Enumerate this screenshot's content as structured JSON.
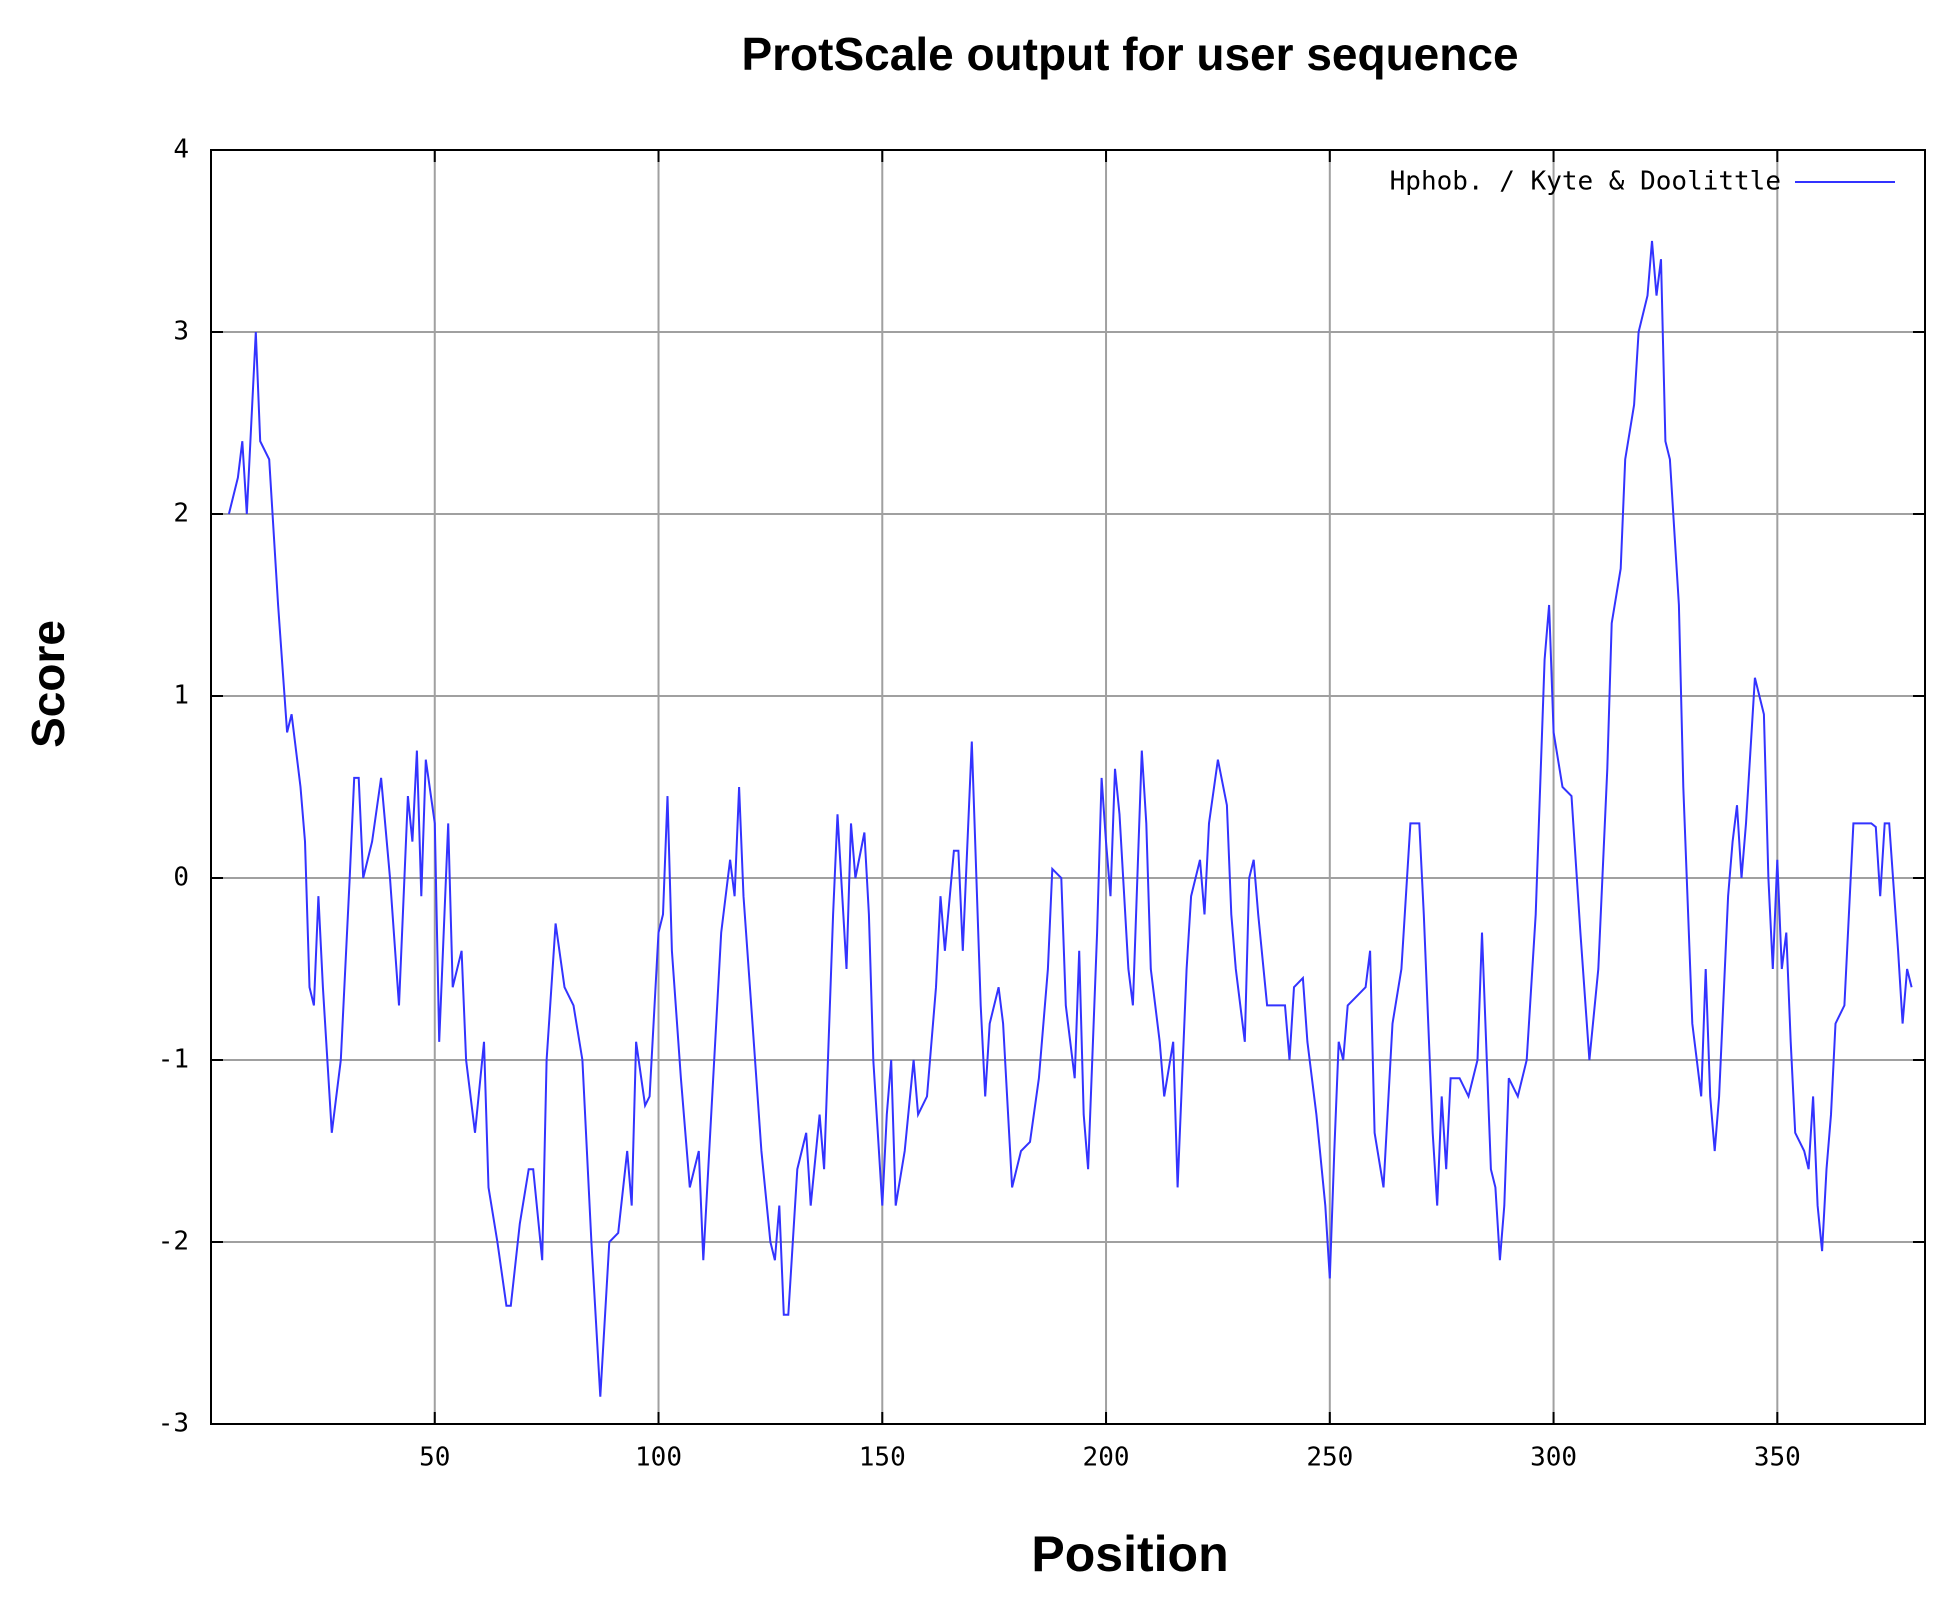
{
  "chart_data": {
    "type": "line",
    "title": "ProtScale output for user sequence",
    "x_label": "Position",
    "y_label": "Score",
    "xlim": [
      0,
      383
    ],
    "ylim": [
      -3,
      4
    ],
    "xticks": [
      50,
      100,
      150,
      200,
      250,
      300,
      350
    ],
    "yticks": [
      -3,
      -2,
      -1,
      0,
      1,
      2,
      3,
      4
    ],
    "grid": true,
    "legend_position": "top right",
    "x": [
      4,
      6,
      7,
      8,
      9,
      10,
      11,
      13,
      15,
      17,
      18,
      20,
      21,
      22,
      23,
      24,
      25,
      27,
      29,
      31,
      32,
      33,
      34,
      36,
      38,
      40,
      42,
      44,
      45,
      46,
      47,
      48,
      50,
      51,
      53,
      54,
      56,
      57,
      59,
      61,
      62,
      64,
      66,
      67,
      69,
      71,
      72,
      74,
      75,
      77,
      79,
      81,
      83,
      85,
      87,
      89,
      91,
      93,
      94,
      95,
      97,
      98,
      100,
      101,
      102,
      103,
      105,
      107,
      109,
      110,
      112,
      114,
      116,
      117,
      118,
      119,
      121,
      123,
      125,
      126,
      127,
      128,
      129,
      131,
      133,
      134,
      136,
      137,
      139,
      140,
      142,
      143,
      144,
      146,
      147,
      148,
      150,
      151,
      152,
      153,
      155,
      157,
      158,
      160,
      162,
      163,
      164,
      166,
      167,
      168,
      170,
      172,
      173,
      174,
      176,
      177,
      179,
      181,
      183,
      185,
      187,
      188,
      190,
      191,
      193,
      194,
      195,
      196,
      198,
      199,
      200,
      201,
      202,
      203,
      205,
      206,
      208,
      209,
      210,
      212,
      213,
      215,
      216,
      218,
      219,
      221,
      222,
      223,
      225,
      227,
      228,
      229,
      231,
      232,
      233,
      234,
      236,
      238,
      240,
      241,
      242,
      244,
      245,
      247,
      249,
      250,
      251,
      252,
      253,
      254,
      256,
      258,
      259,
      260,
      262,
      264,
      266,
      268,
      270,
      271,
      273,
      274,
      275,
      276,
      277,
      279,
      281,
      283,
      284,
      286,
      287,
      288,
      289,
      290,
      292,
      294,
      296,
      298,
      299,
      300,
      302,
      304,
      306,
      308,
      310,
      312,
      313,
      315,
      316,
      318,
      319,
      321,
      322,
      323,
      324,
      325,
      326,
      328,
      329,
      331,
      332,
      333,
      334,
      335,
      336,
      337,
      339,
      340,
      341,
      342,
      343,
      345,
      346,
      347,
      348,
      349,
      350,
      351,
      352,
      353,
      354,
      356,
      357,
      358,
      359,
      360,
      361,
      362,
      363,
      365,
      367,
      369,
      371,
      372,
      373,
      374,
      375,
      377,
      378,
      379,
      380
    ],
    "series": [
      {
        "name": "Hphob. / Kyte & Doolittle",
        "color": "#3333ff",
        "values": [
          2.0,
          2.2,
          2.4,
          2.0,
          2.5,
          3.0,
          2.4,
          2.3,
          1.5,
          0.8,
          0.9,
          0.5,
          0.2,
          -0.6,
          -0.7,
          -0.1,
          -0.6,
          -1.4,
          -1.0,
          0.0,
          0.55,
          0.55,
          0.0,
          0.2,
          0.55,
          0.0,
          -0.7,
          0.45,
          0.2,
          0.7,
          -0.1,
          0.65,
          0.3,
          -0.9,
          0.3,
          -0.6,
          -0.4,
          -1.0,
          -1.4,
          -0.9,
          -1.7,
          -2.0,
          -2.35,
          -2.35,
          -1.9,
          -1.6,
          -1.6,
          -2.1,
          -1.0,
          -0.25,
          -0.6,
          -0.7,
          -1.0,
          -2.0,
          -2.85,
          -2.0,
          -1.95,
          -1.5,
          -1.8,
          -0.9,
          -1.25,
          -1.2,
          -0.3,
          -0.2,
          0.45,
          -0.4,
          -1.1,
          -1.7,
          -1.5,
          -2.1,
          -1.2,
          -0.3,
          0.1,
          -0.1,
          0.5,
          -0.1,
          -0.8,
          -1.5,
          -2.0,
          -2.1,
          -1.8,
          -2.4,
          -2.4,
          -1.6,
          -1.4,
          -1.8,
          -1.3,
          -1.6,
          -0.2,
          0.35,
          -0.5,
          0.3,
          0.0,
          0.25,
          -0.2,
          -1.0,
          -1.8,
          -1.3,
          -1.0,
          -1.8,
          -1.5,
          -1.0,
          -1.3,
          -1.2,
          -0.6,
          -0.1,
          -0.4,
          0.15,
          0.15,
          -0.4,
          0.75,
          -0.7,
          -1.2,
          -0.8,
          -0.6,
          -0.8,
          -1.7,
          -1.5,
          -1.45,
          -1.1,
          -0.5,
          0.05,
          0.0,
          -0.7,
          -1.1,
          -0.4,
          -1.3,
          -1.6,
          -0.3,
          0.55,
          0.2,
          -0.1,
          0.6,
          0.35,
          -0.5,
          -0.7,
          0.7,
          0.3,
          -0.5,
          -0.9,
          -1.2,
          -0.9,
          -1.7,
          -0.5,
          -0.1,
          0.1,
          -0.2,
          0.3,
          0.65,
          0.4,
          -0.2,
          -0.5,
          -0.9,
          0.0,
          0.1,
          -0.2,
          -0.7,
          -0.7,
          -0.7,
          -1.0,
          -0.6,
          -0.55,
          -0.9,
          -1.3,
          -1.8,
          -2.2,
          -1.5,
          -0.9,
          -1.0,
          -0.7,
          -0.65,
          -0.6,
          -0.4,
          -1.4,
          -1.7,
          -0.8,
          -0.5,
          0.3,
          0.3,
          -0.2,
          -1.4,
          -1.8,
          -1.2,
          -1.6,
          -1.1,
          -1.1,
          -1.2,
          -1.0,
          -0.3,
          -1.6,
          -1.7,
          -2.1,
          -1.8,
          -1.1,
          -1.2,
          -1.0,
          -0.2,
          1.2,
          1.5,
          0.8,
          0.5,
          0.45,
          -0.3,
          -1.0,
          -0.5,
          0.6,
          1.4,
          1.7,
          2.3,
          2.6,
          3.0,
          3.2,
          3.5,
          3.2,
          3.4,
          2.4,
          2.3,
          1.5,
          0.5,
          -0.8,
          -1.0,
          -1.2,
          -0.5,
          -1.2,
          -1.5,
          -1.2,
          -0.1,
          0.2,
          0.4,
          0.0,
          0.3,
          1.1,
          1.0,
          0.9,
          0.0,
          -0.5,
          0.1,
          -0.5,
          -0.3,
          -0.9,
          -1.4,
          -1.5,
          -1.6,
          -1.2,
          -1.8,
          -2.05,
          -1.6,
          -1.3,
          -0.8,
          -0.7,
          0.3,
          0.3,
          0.3,
          0.28,
          -0.1,
          0.3,
          0.3,
          -0.4,
          -0.8,
          -0.5,
          -0.6
        ]
      }
    ]
  }
}
